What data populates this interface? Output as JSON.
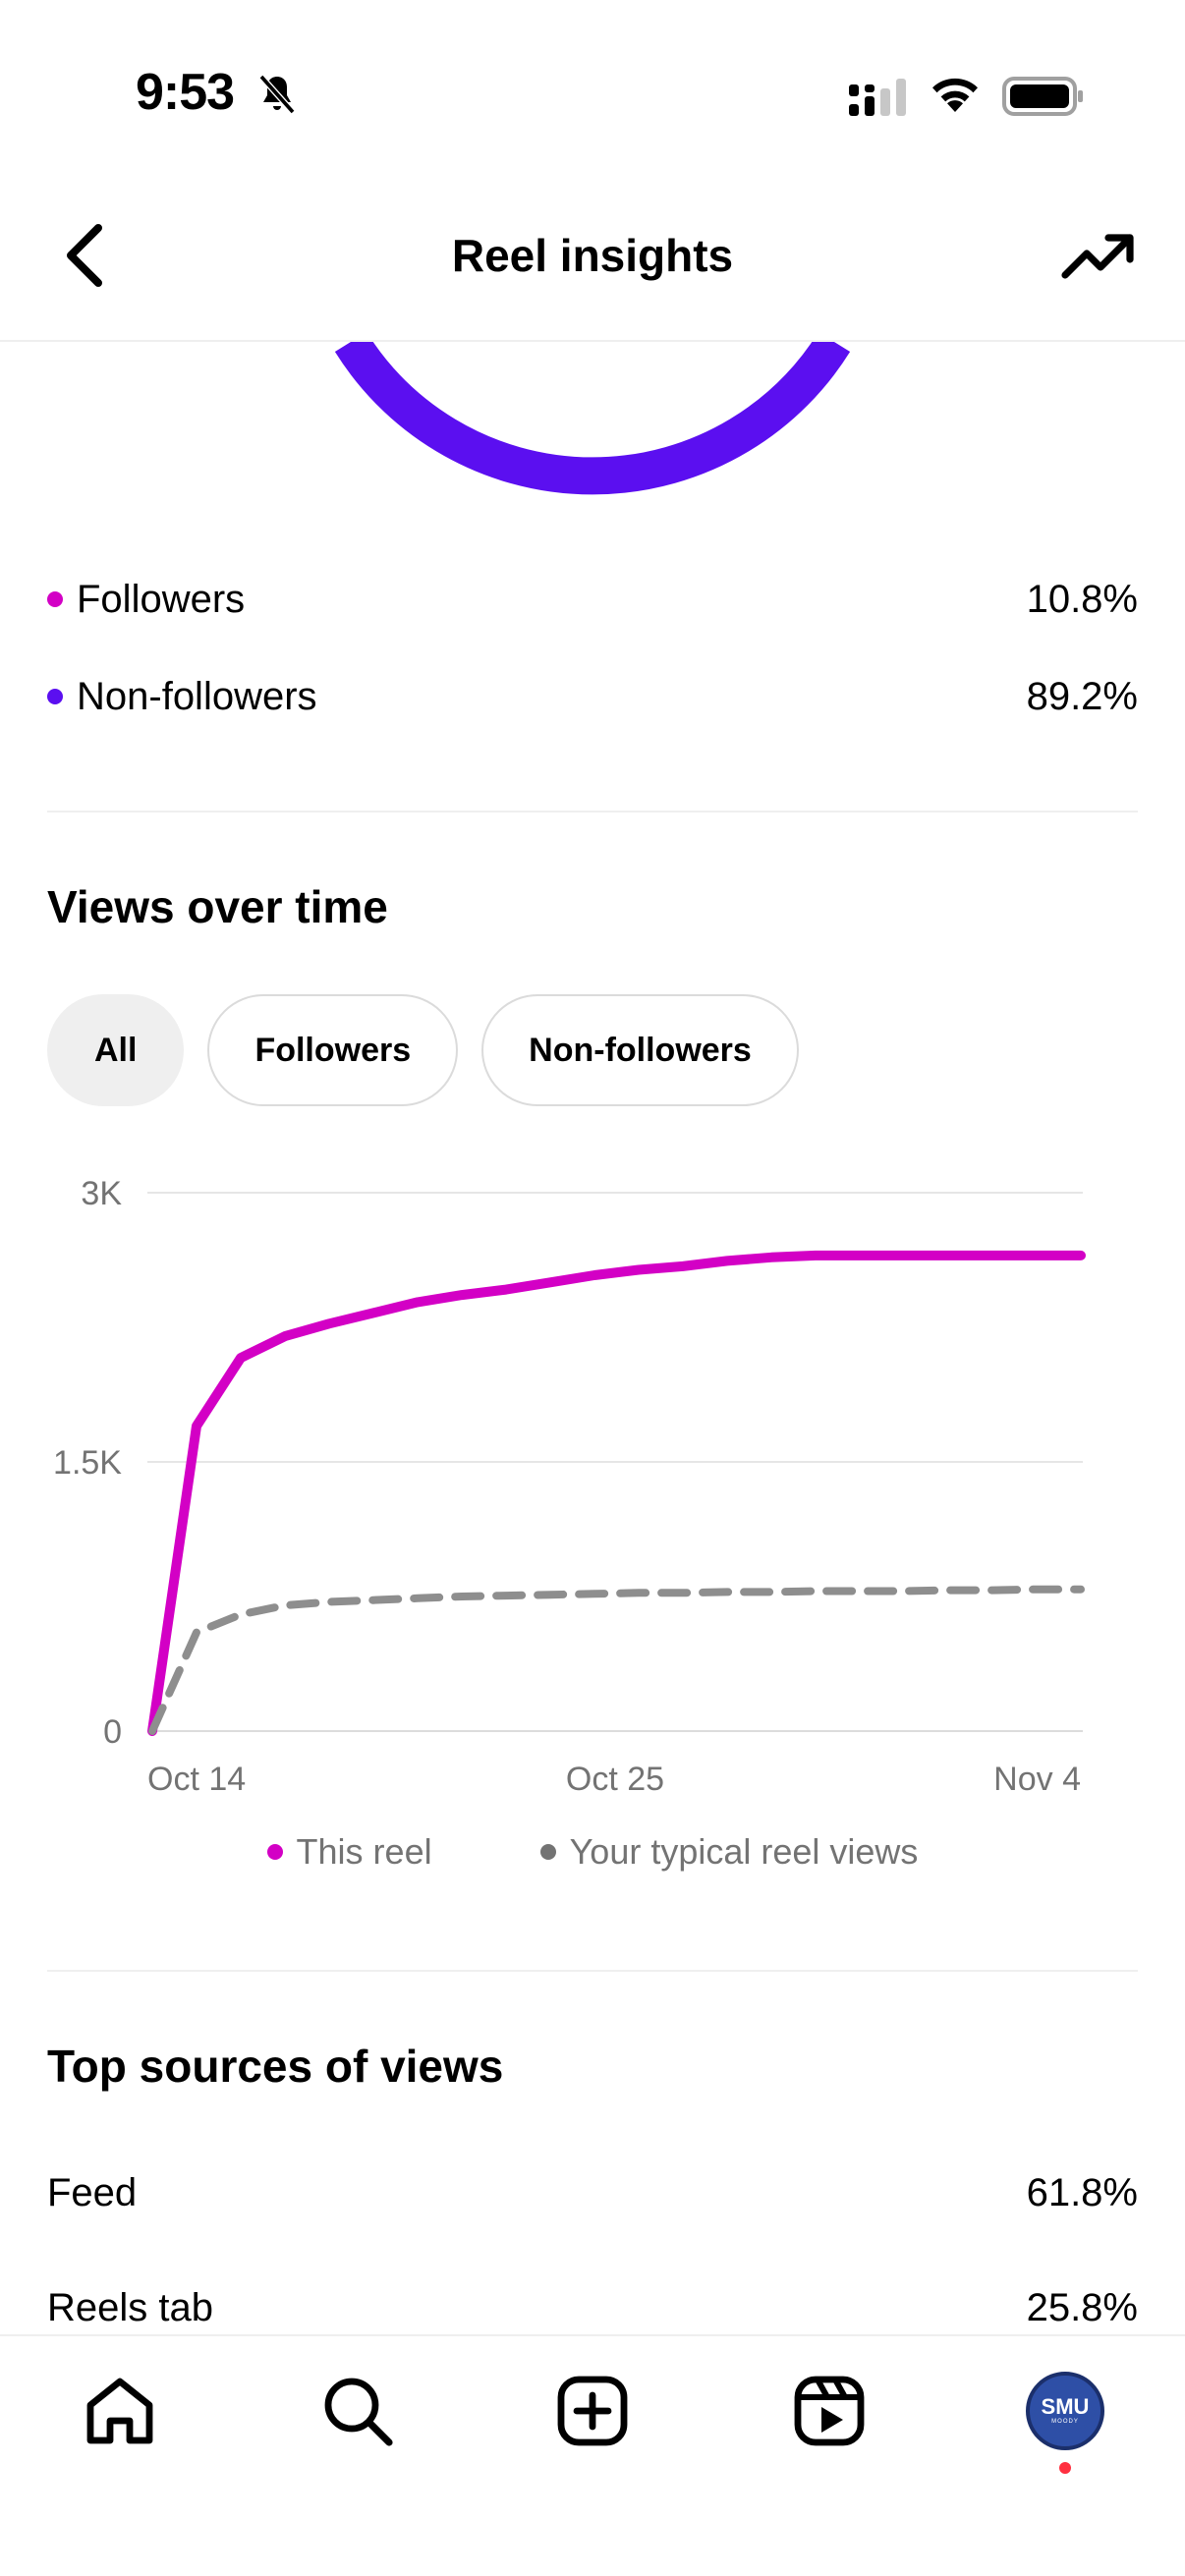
{
  "status_bar": {
    "time": "9:53"
  },
  "header": {
    "title": "Reel insights"
  },
  "audience": [
    {
      "label": "Followers",
      "value": "10.8%",
      "color": "#d300c5"
    },
    {
      "label": "Non-followers",
      "value": "89.2%",
      "color": "#5b0ff0"
    }
  ],
  "views_over_time": {
    "title": "Views over time",
    "filters": [
      "All",
      "Followers",
      "Non-followers"
    ],
    "selected_filter": "All"
  },
  "chart_data": {
    "type": "line",
    "x_ticks": [
      "Oct 14",
      "Oct 25",
      "Nov 4"
    ],
    "y_ticks": [
      "3K",
      "1.5K",
      "0"
    ],
    "ylim": [
      0,
      3000
    ],
    "grid": true,
    "legend_position": "bottom",
    "series": [
      {
        "name": "This reel",
        "color": "#d300c5",
        "style": "solid",
        "values": [
          0,
          1700,
          2080,
          2200,
          2270,
          2330,
          2390,
          2430,
          2460,
          2500,
          2540,
          2570,
          2590,
          2620,
          2640,
          2650,
          2650,
          2650,
          2650,
          2650,
          2650,
          2650
        ]
      },
      {
        "name": "Your typical reel views",
        "color": "#8e8e8e",
        "style": "dashed",
        "values": [
          0,
          550,
          650,
          700,
          720,
          730,
          740,
          750,
          755,
          760,
          765,
          770,
          770,
          775,
          775,
          780,
          780,
          780,
          785,
          785,
          790,
          790
        ]
      }
    ]
  },
  "top_sources": {
    "title": "Top sources of views",
    "items": [
      {
        "label": "Feed",
        "value": "61.8%"
      },
      {
        "label": "Reels tab",
        "value": "25.8%"
      }
    ]
  },
  "profile": {
    "avatar_text": "SMU",
    "avatar_subtext": "MOODY"
  },
  "colors": {
    "accent_magenta": "#d300c5",
    "accent_purple": "#5b0ff0",
    "muted_gray": "#737373"
  }
}
